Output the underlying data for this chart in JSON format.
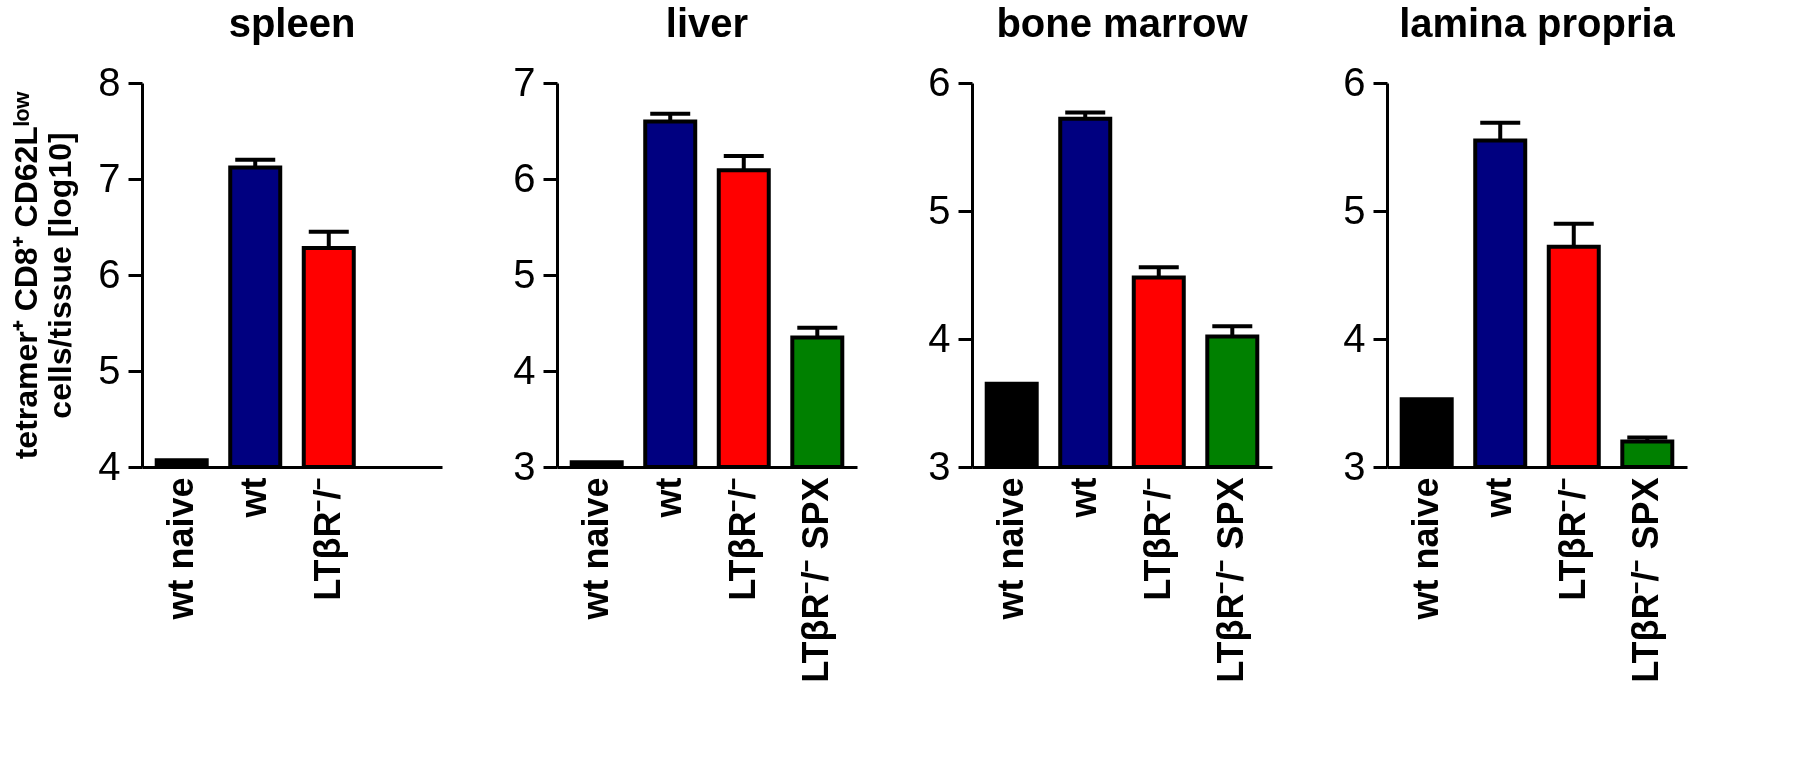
{
  "chart_data": [
    {
      "type": "bar",
      "title": "spleen",
      "ylabel": "tetramer⁺ CD8⁺ CD62Lˡᵒʷ\ncells/tissue [log10]",
      "categories": [
        "wt naive",
        "wt",
        "LTβR⁻/⁻",
        null
      ],
      "values": [
        4.07,
        7.12,
        6.28,
        null
      ],
      "colors": [
        "#000000",
        "#000080",
        "#ff0000",
        "#008000"
      ],
      "errors": [
        null,
        [
          7.12,
          7.2
        ],
        [
          6.28,
          6.45
        ],
        null
      ],
      "ylim": [
        4,
        8
      ],
      "yticks": [
        4,
        5,
        6,
        7,
        8
      ],
      "grid": false
    },
    {
      "type": "bar",
      "title": "liver",
      "categories": [
        "wt naive",
        "wt",
        "LTβR⁻/⁻",
        "LTβR⁻/⁻ SPX"
      ],
      "values": [
        3.05,
        6.6,
        6.09,
        4.35
      ],
      "colors": [
        "#000000",
        "#000080",
        "#ff0000",
        "#008000"
      ],
      "errors": [
        null,
        [
          6.6,
          6.68
        ],
        [
          6.09,
          6.24
        ],
        [
          4.35,
          4.45
        ]
      ],
      "ylim": [
        3,
        7
      ],
      "yticks": [
        3,
        4,
        5,
        6,
        7
      ],
      "grid": false
    },
    {
      "type": "bar",
      "title": "bone marrow",
      "categories": [
        "wt naive",
        "wt",
        "LTβR⁻/⁻",
        "LTβR⁻/⁻ SPX"
      ],
      "values": [
        3.65,
        5.72,
        4.48,
        4.02
      ],
      "colors": [
        "#000000",
        "#000080",
        "#ff0000",
        "#008000"
      ],
      "errors": [
        null,
        [
          5.72,
          5.77
        ],
        [
          4.48,
          4.56
        ],
        [
          4.02,
          4.1
        ]
      ],
      "ylim": [
        3,
        6
      ],
      "yticks": [
        3,
        4,
        5,
        6
      ],
      "grid": false
    },
    {
      "type": "bar",
      "title": "lamina propria",
      "categories": [
        "wt naive",
        "wt",
        "LTβR⁻/⁻",
        "LTβR⁻/⁻ SPX"
      ],
      "values": [
        3.53,
        5.55,
        4.72,
        3.2
      ],
      "colors": [
        "#000000",
        "#000080",
        "#ff0000",
        "#008000"
      ],
      "errors": [
        null,
        [
          5.55,
          5.69
        ],
        [
          4.72,
          4.9
        ],
        [
          3.2,
          3.23
        ]
      ],
      "ylim": [
        3,
        6
      ],
      "yticks": [
        3,
        4,
        5,
        6
      ],
      "grid": false
    }
  ]
}
